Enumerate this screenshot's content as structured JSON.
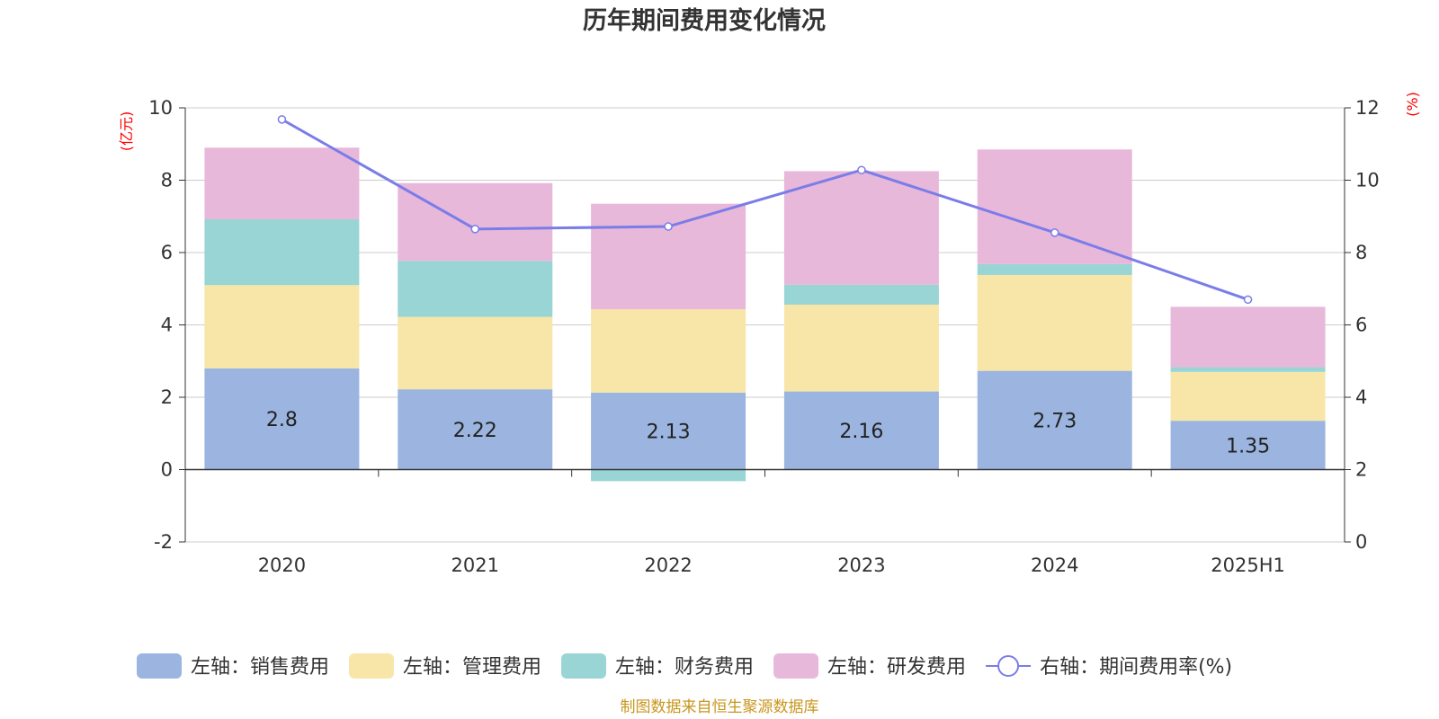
{
  "chart_data": {
    "type": "bar",
    "title": "历年期间费用变化情况",
    "categories": [
      "2020",
      "2021",
      "2022",
      "2023",
      "2024",
      "2025H1"
    ],
    "left_axis": {
      "unit": "(亿元)",
      "ylim": [
        -2,
        10
      ],
      "ticks": [
        "-2",
        "0",
        "2",
        "4",
        "6",
        "8",
        "10"
      ]
    },
    "right_axis": {
      "unit": "(%)",
      "ylim": [
        0,
        12
      ],
      "ticks": [
        "0",
        "2",
        "4",
        "6",
        "8",
        "10",
        "12"
      ]
    },
    "series": [
      {
        "name": "左轴：销售费用",
        "type": "bar",
        "stack": true,
        "axis": "left",
        "color": "#9bb5e0",
        "values": [
          2.8,
          2.22,
          2.13,
          2.16,
          2.73,
          1.35
        ],
        "labels": [
          "2.8",
          "2.22",
          "2.13",
          "2.16",
          "2.73",
          "1.35"
        ]
      },
      {
        "name": "左轴：管理费用",
        "type": "bar",
        "stack": true,
        "axis": "left",
        "color": "#f8e6a8",
        "values": [
          2.3,
          2.0,
          2.3,
          2.4,
          2.65,
          1.35
        ]
      },
      {
        "name": "左轴：财务费用",
        "type": "bar",
        "stack": true,
        "axis": "left",
        "color": "#98d5d4",
        "values": [
          1.82,
          1.55,
          -0.32,
          0.55,
          0.3,
          0.13
        ]
      },
      {
        "name": "左轴：研发费用",
        "type": "bar",
        "stack": true,
        "axis": "left",
        "color": "#e8b8da",
        "values": [
          1.98,
          2.15,
          2.92,
          3.14,
          3.17,
          1.67
        ]
      },
      {
        "name": "右轴：期间费用率(%)",
        "type": "line",
        "axis": "right",
        "color": "#7a7de8",
        "values": [
          11.68,
          8.65,
          8.72,
          10.28,
          8.55,
          6.7
        ]
      }
    ],
    "grid": true,
    "legend_position": "bottom",
    "source": "制图数据来自恒生聚源数据库"
  }
}
